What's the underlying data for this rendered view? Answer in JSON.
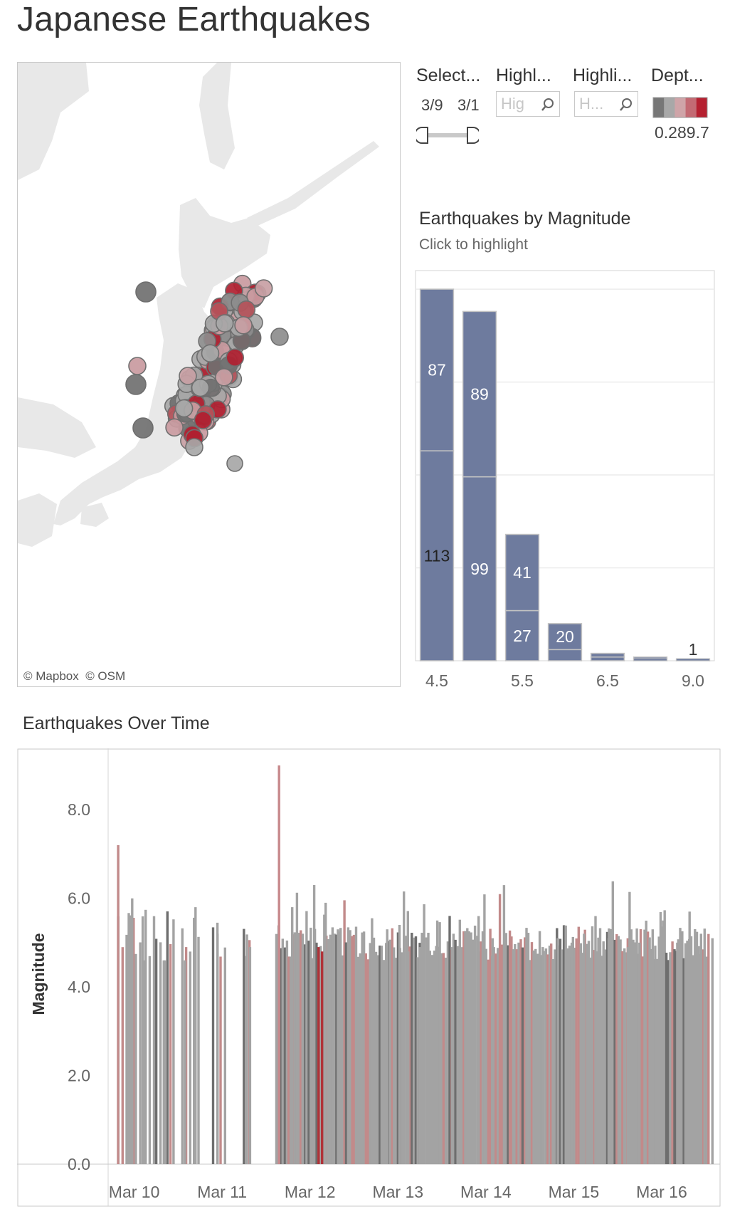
{
  "title": "Japanese Earthquakes",
  "map": {
    "credits": [
      "© Mapbox",
      "© OSM"
    ]
  },
  "filters": {
    "date_filter": {
      "title": "Select...",
      "start": "3/9",
      "end": "3/1"
    },
    "highlight_1": {
      "title": "Highl...",
      "placeholder": "Hig"
    },
    "highlight_2": {
      "title": "Highli...",
      "placeholder": "H..."
    },
    "depth_legend": {
      "title": "Dept...",
      "min_label": "0.2",
      "max_label": "89.7",
      "colors": [
        "#777777",
        "#a8a8a8",
        "#cfa4a8",
        "#c36a73",
        "#b52030"
      ]
    }
  },
  "magnitude_chart": {
    "title": "Earthquakes by Magnitude",
    "subtitle": "Click to highlight"
  },
  "time_chart": {
    "title": "Earthquakes Over Time"
  },
  "colors": {
    "bar_blue": "#6e7b9e",
    "gray_light": "#a3a3a3",
    "gray_dark": "#6e6e6e",
    "red_light": "#c28a8a",
    "red_dark": "#b03238"
  },
  "chart_data": [
    {
      "type": "bar",
      "categories": [
        "4.5",
        "5.0",
        "5.5",
        "6.0",
        "6.5",
        "7.0",
        "9.0"
      ],
      "x_tick_labels": [
        "4.5",
        "5.5",
        "6.5",
        "9.0"
      ],
      "stacked": true,
      "series": [
        {
          "values": [
            113,
            99,
            27,
            6,
            2,
            1,
            0
          ]
        },
        {
          "values": [
            87,
            89,
            41,
            14,
            2,
            1,
            1
          ]
        }
      ],
      "data_labels": [
        {
          "category": "4.5",
          "stack": 0,
          "text": "113"
        },
        {
          "category": "4.5",
          "stack": 1,
          "text": "87"
        },
        {
          "category": "5.0",
          "stack": 0,
          "text": "99"
        },
        {
          "category": "5.0",
          "stack": 1,
          "text": "89"
        },
        {
          "category": "5.5",
          "stack": 0,
          "text": "27"
        },
        {
          "category": "5.5",
          "stack": 1,
          "text": "41"
        },
        {
          "category": "6.0",
          "stack": 1,
          "text": "20"
        },
        {
          "category": "9.0",
          "stack": 1,
          "text": "1"
        }
      ],
      "ylim": [
        0,
        210
      ],
      "grid": true
    },
    {
      "type": "bar",
      "title": "",
      "xlabel": "",
      "ylabel": "Magnitude",
      "ylim": [
        0,
        9
      ],
      "y_ticks": [
        "0.0",
        "2.0",
        "4.0",
        "6.0",
        "8.0"
      ],
      "x_ticks": [
        "Mar 10",
        "Mar 11",
        "Mar 12",
        "Mar 13",
        "Mar 14",
        "Mar 15",
        "Mar 16"
      ],
      "time_range_days": [
        9.72,
        16.68
      ],
      "x_tick_days": [
        10,
        11,
        12,
        13,
        14,
        15,
        16
      ],
      "series": [
        {
          "values": [
            [
              9.98,
              6.0
            ],
            [
              10.12,
              4.6
            ],
            [
              10.35,
              4.6
            ],
            [
              10.58,
              4.6
            ],
            [
              10.7,
              5.8
            ],
            [
              10.95,
              5.2
            ],
            [
              11.28,
              4.7
            ],
            [
              11.32,
              4.9
            ],
            [
              11.65,
              9.0
            ],
            [
              11.8,
              5.8
            ],
            [
              11.92,
              5.2
            ],
            [
              12.05,
              6.3
            ],
            [
              12.18,
              5.9
            ],
            [
              12.32,
              5.3
            ],
            [
              12.45,
              4.8
            ],
            [
              12.7,
              4.9
            ],
            [
              12.88,
              5.3
            ],
            [
              13.02,
              5.4
            ],
            [
              13.12,
              4.8
            ],
            [
              13.25,
              4.9
            ],
            [
              13.45,
              5.5
            ],
            [
              13.62,
              4.9
            ],
            [
              13.78,
              5.2
            ],
            [
              13.92,
              5.6
            ],
            [
              14.08,
              5.1
            ],
            [
              14.22,
              4.7
            ],
            [
              14.48,
              5.1
            ],
            [
              14.65,
              4.9
            ],
            [
              14.82,
              5.1
            ],
            [
              14.98,
              5.0
            ],
            [
              15.12,
              5.2
            ],
            [
              15.25,
              5.6
            ],
            [
              15.4,
              5.1
            ],
            [
              15.62,
              4.9
            ],
            [
              15.75,
              5.0
            ],
            [
              15.9,
              5.3
            ],
            [
              16.02,
              5.5
            ],
            [
              16.18,
              5.0
            ],
            [
              16.32,
              5.7
            ],
            [
              16.45,
              5.2
            ],
            [
              16.58,
              5.1
            ]
          ]
        }
      ],
      "grid": true
    }
  ]
}
